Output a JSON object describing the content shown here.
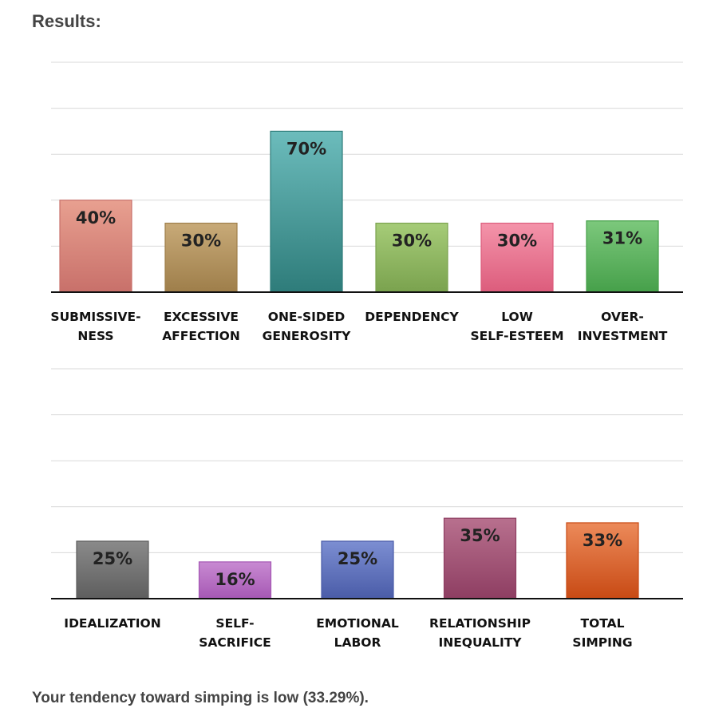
{
  "heading": "Results:",
  "summary": "Your tendency toward simping is low (33.29%).",
  "chart_data": [
    {
      "type": "bar",
      "categories": [
        [
          "SUBMISSIVE-",
          "NESS"
        ],
        [
          "EXCESSIVE",
          "AFFECTION"
        ],
        [
          "ONE-SIDED",
          "GENEROSITY"
        ],
        [
          "DEPENDENCY"
        ],
        [
          "LOW",
          "SELF-ESTEEM"
        ],
        [
          "OVER-",
          "INVESTMENT"
        ]
      ],
      "values": [
        40,
        30,
        70,
        30,
        30,
        31
      ],
      "data_labels": [
        "40%",
        "30%",
        "70%",
        "30%",
        "30%",
        "31%"
      ],
      "colors": [
        [
          "#e8a090",
          "#c8706a"
        ],
        [
          "#c8aa78",
          "#9e7e4a"
        ],
        [
          "#6cbcbc",
          "#2e7c7a"
        ],
        [
          "#a6cc78",
          "#7aa24e"
        ],
        [
          "#f494aa",
          "#dc5c7c"
        ],
        [
          "#7cc87c",
          "#46a04a"
        ]
      ],
      "ylim": [
        0,
        100
      ],
      "grid": true
    },
    {
      "type": "bar",
      "categories": [
        [
          "IDEALIZATION"
        ],
        [
          "SELF-",
          "SACRIFICE"
        ],
        [
          "EMOTIONAL",
          "LABOR"
        ],
        [
          "RELATIONSHIP",
          "INEQUALITY"
        ],
        [
          "TOTAL",
          "SIMPING"
        ]
      ],
      "values": [
        25,
        16,
        25,
        35,
        33
      ],
      "data_labels": [
        "25%",
        "16%",
        "25%",
        "35%",
        "33%"
      ],
      "colors": [
        [
          "#8a8a8a",
          "#5e5e5e"
        ],
        [
          "#c88ad2",
          "#a658b4"
        ],
        [
          "#7c8ed2",
          "#4a5ca8"
        ],
        [
          "#b8708e",
          "#8e3e62"
        ],
        [
          "#ec8a5a",
          "#c84a14"
        ]
      ],
      "ylim": [
        0,
        100
      ],
      "grid": true
    }
  ]
}
